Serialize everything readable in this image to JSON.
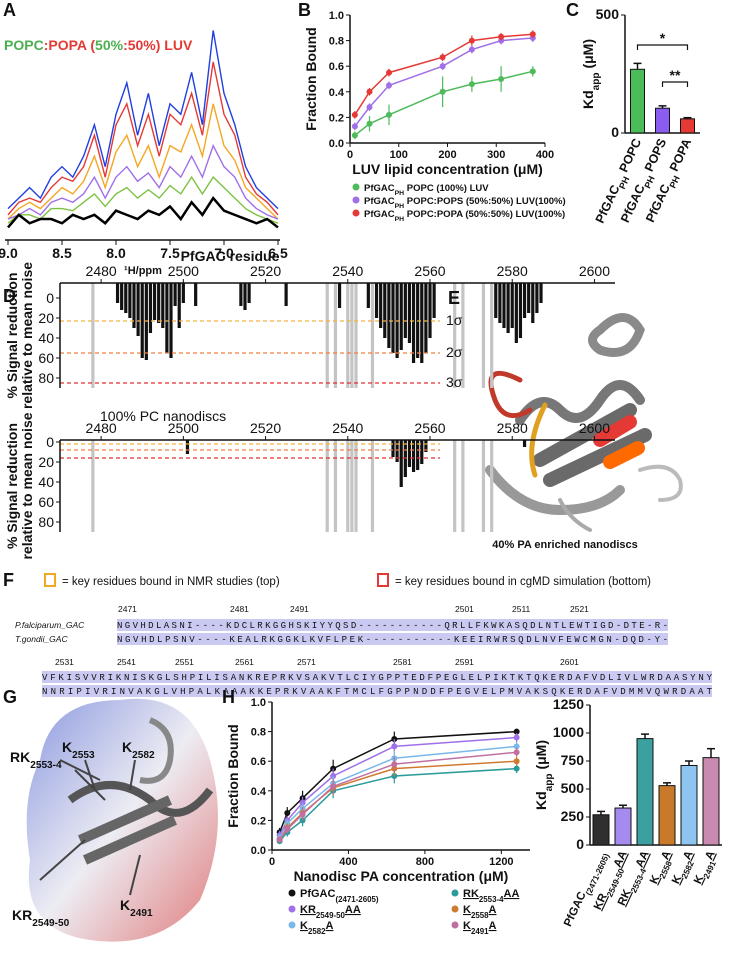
{
  "chart_data": [
    {
      "label": "A",
      "type": "line",
      "title_parts": [
        {
          "text": "POPC",
          "color": "#4caf50"
        },
        {
          "text": ":POPA (",
          "color": "#e53935"
        },
        {
          "text": "50%",
          "color": "#4caf50"
        },
        {
          "text": ":50%) LUV",
          "color": "#e53935"
        }
      ],
      "x": [
        9.0,
        8.9,
        8.8,
        8.7,
        8.6,
        8.5,
        8.4,
        8.3,
        8.2,
        8.1,
        8.0,
        7.9,
        7.8,
        7.7,
        7.6,
        7.5,
        7.4,
        7.3,
        7.2,
        7.1,
        7.0,
        6.9,
        6.8,
        6.7,
        6.6,
        6.5
      ],
      "xlim": [
        9.0,
        6.5
      ],
      "ylim": [
        0,
        1.05
      ],
      "xticks": [
        {
          "value": 9.0,
          "label": "9.0"
        },
        8.5,
        {
          "value": 8.0,
          "label": "8.0"
        },
        7.5,
        {
          "value": 7.0,
          "label": "7.0"
        },
        6.5
      ],
      "xlabel": "¹H/ppm",
      "series": [
        {
          "color": "#1f3fe0",
          "values": [
            0.15,
            0.2,
            0.25,
            0.2,
            0.3,
            0.35,
            0.3,
            0.4,
            0.55,
            0.35,
            0.6,
            0.75,
            0.5,
            0.7,
            0.45,
            0.65,
            0.6,
            0.8,
            0.55,
            1.0,
            0.7,
            0.55,
            0.35,
            0.25,
            0.2,
            0.15
          ]
        },
        {
          "color": "#e53935",
          "values": [
            0.12,
            0.18,
            0.2,
            0.18,
            0.25,
            0.3,
            0.28,
            0.35,
            0.5,
            0.3,
            0.55,
            0.65,
            0.45,
            0.6,
            0.4,
            0.6,
            0.55,
            0.7,
            0.5,
            0.85,
            0.6,
            0.5,
            0.3,
            0.22,
            0.18,
            0.12
          ]
        },
        {
          "color": "#f5a623",
          "values": [
            0.1,
            0.15,
            0.18,
            0.15,
            0.2,
            0.25,
            0.22,
            0.28,
            0.4,
            0.25,
            0.42,
            0.5,
            0.35,
            0.45,
            0.3,
            0.45,
            0.42,
            0.55,
            0.4,
            0.65,
            0.45,
            0.38,
            0.25,
            0.2,
            0.15,
            0.1
          ]
        },
        {
          "color": "#a070e8",
          "values": [
            0.1,
            0.12,
            0.15,
            0.12,
            0.18,
            0.2,
            0.18,
            0.22,
            0.3,
            0.2,
            0.3,
            0.35,
            0.28,
            0.32,
            0.25,
            0.35,
            0.3,
            0.4,
            0.3,
            0.45,
            0.35,
            0.3,
            0.2,
            0.15,
            0.12,
            0.1
          ]
        },
        {
          "color": "#7cc242",
          "values": [
            0.08,
            0.12,
            0.12,
            0.1,
            0.15,
            0.15,
            0.14,
            0.18,
            0.22,
            0.16,
            0.22,
            0.25,
            0.2,
            0.24,
            0.2,
            0.26,
            0.22,
            0.3,
            0.22,
            0.3,
            0.25,
            0.2,
            0.15,
            0.12,
            0.1,
            0.08
          ]
        },
        {
          "color": "#000000",
          "values": [
            0.06,
            0.12,
            0.08,
            0.1,
            0.1,
            0.08,
            0.12,
            0.1,
            0.12,
            0.08,
            0.14,
            0.12,
            0.1,
            0.14,
            0.12,
            0.16,
            0.1,
            0.18,
            0.12,
            0.2,
            0.14,
            0.12,
            0.1,
            0.08,
            0.1,
            0.06
          ]
        }
      ]
    },
    {
      "label": "B",
      "type": "scatter",
      "x": [
        10,
        40,
        80,
        190,
        250,
        310,
        375
      ],
      "xlim": [
        0,
        400
      ],
      "xticks": [
        0,
        100,
        200,
        300,
        400
      ],
      "ylim": [
        0,
        1
      ],
      "yticks": [
        {
          "value": 0,
          "label": "0.0"
        },
        0.2,
        0.4,
        0.6,
        0.8,
        {
          "value": 1,
          "label": "1.0"
        }
      ],
      "xlabel": "LUV lipid concentration (μM)",
      "ylabel": "Fraction Bound",
      "series": [
        {
          "name": [
            "PfGAC",
            "PH",
            " POPC (100%) LUV"
          ],
          "color": "#4cbb5a",
          "values": [
            0.06,
            0.15,
            0.22,
            0.4,
            0.46,
            0.5,
            0.56
          ],
          "errors": [
            0.03,
            0.06,
            0.08,
            0.12,
            0.06,
            0.1,
            0.04
          ]
        },
        {
          "name": [
            "PfGAC",
            "PH",
            " POPC:POPS (50%:50%) LUV(100%)"
          ],
          "color": "#a070e8",
          "values": [
            0.13,
            0.28,
            0.45,
            0.6,
            0.73,
            0.8,
            0.82
          ],
          "errors": [
            0.03,
            0.03,
            0.03,
            0.03,
            0.03,
            0.03,
            0.03
          ]
        },
        {
          "name": [
            "PfGAC",
            "PH",
            " POPC:POPA (50%:50%) LUV(100%)"
          ],
          "color": "#e53935",
          "values": [
            0.22,
            0.4,
            0.55,
            0.67,
            0.8,
            0.83,
            0.85
          ],
          "errors": [
            0.03,
            0.03,
            0.03,
            0.03,
            0.04,
            0.03,
            0.03
          ]
        }
      ]
    },
    {
      "label": "C",
      "type": "bar",
      "categories": [
        [
          "PfGAC",
          "PH",
          " POPC"
        ],
        [
          "PfGAC",
          "PH",
          " POPS"
        ],
        [
          "PfGAC",
          "PH",
          " POPA"
        ]
      ],
      "values": [
        270,
        105,
        60
      ],
      "errors": [
        25,
        10,
        5
      ],
      "colors": [
        "#4cbb5a",
        "#8a5cf0",
        "#e53935"
      ],
      "ylim": [
        0,
        500
      ],
      "yticks": [
        0,
        500
      ],
      "ylabel": [
        "Kd",
        "app",
        " (μM)"
      ],
      "annotations": [
        "*",
        "**"
      ]
    },
    {
      "label": "D",
      "type": "bar",
      "xlabel": "PfGAC residue",
      "xlim": [
        2470,
        2605
      ],
      "xticks": [
        2480,
        2500,
        2520,
        2540,
        2560,
        2580,
        2600
      ],
      "ylim": [
        -15,
        90
      ],
      "yticks": [
        0,
        20,
        40,
        60,
        80
      ],
      "ylabel": [
        "% Signal reduction",
        "relative to mean noise"
      ],
      "residues": [
        2484,
        2485,
        2486,
        2487,
        2488,
        2489,
        2490,
        2491,
        2492,
        2493,
        2494,
        2495,
        2496,
        2497,
        2498,
        2499,
        2500,
        2503,
        2514,
        2515,
        2516,
        2525,
        2538,
        2545,
        2547,
        2548,
        2549,
        2550,
        2551,
        2552,
        2553,
        2554,
        2555,
        2556,
        2557,
        2558,
        2559,
        2560,
        2561,
        2576,
        2577,
        2578,
        2579,
        2580,
        2581,
        2582,
        2583,
        2584,
        2585,
        2586,
        2587
      ],
      "values": [
        5,
        12,
        15,
        20,
        30,
        38,
        60,
        62,
        35,
        22,
        25,
        30,
        55,
        60,
        8,
        30,
        5,
        8,
        8,
        12,
        5,
        8,
        10,
        10,
        20,
        30,
        40,
        50,
        55,
        60,
        52,
        40,
        45,
        65,
        60,
        65,
        55,
        40,
        20,
        20,
        25,
        30,
        35,
        30,
        45,
        40,
        20,
        15,
        25,
        15,
        5
      ],
      "missing_residues": [
        2478,
        2535,
        2537,
        2540,
        2541,
        2542,
        2546,
        2566,
        2568,
        2573,
        2575
      ],
      "reference_lines": [
        {
          "value": 23,
          "label": "1σ",
          "color": "#f5b041"
        },
        {
          "value": 55,
          "label": "2σ",
          "color": "#f08040"
        },
        {
          "value": 85,
          "label": "3σ",
          "color": "#e03030"
        }
      ]
    },
    {
      "type": "bar",
      "subtitle": "100% PC nanodiscs",
      "subtitle_color": "#5cc15c",
      "xlim": [
        2470,
        2605
      ],
      "xticks": [
        2480,
        2500,
        2520,
        2540,
        2560,
        2580,
        2600
      ],
      "ylim": [
        -2,
        90
      ],
      "yticks": [
        0,
        20,
        40,
        60,
        80
      ],
      "ylabel": [
        "% Signal reduction",
        "relative to mean noise"
      ],
      "residues": [
        2501,
        2551,
        2552,
        2553,
        2554,
        2555,
        2556,
        2557,
        2558,
        2559,
        2583
      ],
      "values": [
        12,
        15,
        20,
        45,
        35,
        25,
        30,
        28,
        22,
        10,
        5
      ],
      "missing_residues": [
        2478,
        2535,
        2537,
        2540,
        2541,
        2542,
        2546,
        2566,
        2568,
        2573,
        2575
      ],
      "reference_lines": [
        {
          "value": 2,
          "color": "#f5b041"
        },
        {
          "value": 8,
          "color": "#f08040"
        },
        {
          "value": 16,
          "color": "#e03030"
        }
      ]
    },
    {
      "label": "H",
      "type": "scatter",
      "x": [
        40,
        80,
        160,
        320,
        640,
        1280
      ],
      "xlim": [
        0,
        1350
      ],
      "xticks": [
        0,
        400,
        800,
        1200
      ],
      "ylim": [
        0,
        1
      ],
      "yticks": [
        {
          "value": 0,
          "label": "0.0"
        },
        0.2,
        0.4,
        0.6,
        0.8,
        {
          "value": 1,
          "label": "1.0"
        }
      ],
      "xlabel": "Nanodisc PA concentration (μM)",
      "ylabel": "Fraction Bound",
      "series": [
        {
          "name": [
            "PfGAC",
            "(2471-2605)"
          ],
          "underline": false,
          "color": "#111111",
          "values": [
            0.12,
            0.25,
            0.35,
            0.55,
            0.75,
            0.8
          ],
          "errors": [
            0.03,
            0.04,
            0.05,
            0.06,
            0.05,
            0.02
          ]
        },
        {
          "name": [
            "KR",
            "2549-50",
            "AA"
          ],
          "underline": true,
          "color": "#a070e8",
          "values": [
            0.1,
            0.2,
            0.32,
            0.5,
            0.7,
            0.76
          ],
          "errors": [
            0.03,
            0.03,
            0.04,
            0.05,
            0.05,
            0.03
          ]
        },
        {
          "name": [
            "K",
            "2582",
            "A"
          ],
          "underline": true,
          "color": "#7ab8e8",
          "values": [
            0.08,
            0.18,
            0.28,
            0.45,
            0.62,
            0.7
          ],
          "errors": [
            0.03,
            0.03,
            0.04,
            0.05,
            0.05,
            0.03
          ]
        },
        {
          "name": [
            "RK",
            "2553-4",
            "AA"
          ],
          "underline": true,
          "color": "#2a9a9a",
          "values": [
            0.06,
            0.12,
            0.2,
            0.4,
            0.5,
            0.55
          ],
          "errors": [
            0.02,
            0.03,
            0.04,
            0.05,
            0.05,
            0.03
          ]
        },
        {
          "name": [
            "K",
            "2558",
            "A"
          ],
          "underline": true,
          "color": "#d07a30",
          "values": [
            0.07,
            0.15,
            0.25,
            0.42,
            0.55,
            0.6
          ],
          "errors": [
            0.02,
            0.03,
            0.04,
            0.05,
            0.05,
            0.03
          ]
        },
        {
          "name": [
            "K",
            "2491",
            "A"
          ],
          "underline": true,
          "color": "#c070a0",
          "values": [
            0.07,
            0.14,
            0.24,
            0.43,
            0.58,
            0.66
          ],
          "errors": [
            0.02,
            0.03,
            0.04,
            0.05,
            0.05,
            0.03
          ]
        }
      ]
    },
    {
      "type": "bar",
      "categories": [
        [
          "PfGAC",
          "(2471-2605)"
        ],
        [
          "KR",
          "2549-50",
          "AA"
        ],
        [
          "RK",
          "2553-4",
          "AA"
        ],
        [
          "K",
          "2558",
          "A"
        ],
        [
          "K",
          "2582",
          "A"
        ],
        [
          "K",
          "2491",
          "A"
        ]
      ],
      "underline": [
        false,
        true,
        true,
        true,
        true,
        true
      ],
      "values": [
        270,
        330,
        950,
        530,
        710,
        780
      ],
      "errors": [
        30,
        25,
        40,
        25,
        40,
        80
      ],
      "colors": [
        "#2f2f2f",
        "#a58bf0",
        "#3aa0a0",
        "#c87a2a",
        "#8ec4f0",
        "#c88ab0"
      ],
      "ylim": [
        0,
        1250
      ],
      "yticks": [
        0,
        250,
        500,
        750,
        1000,
        1250
      ],
      "ylabel": [
        "Kd",
        "app",
        " (μM)"
      ]
    }
  ],
  "structure_e": {
    "label": "E",
    "caption": "40% PA enriched nanodiscs"
  },
  "alignment": {
    "label": "F",
    "legend": [
      "= key residues bound in NMR studies (top)",
      "= key residues bound in cgMD simulation (bottom)"
    ],
    "blocks": [
      {
        "numbers": [
          2471,
          2481,
          2491,
          2501,
          2511,
          2521
        ],
        "rows": [
          {
            "species": "P.falciparum_GAC",
            "sequence": "NGVHDLASNI----KDCLRKGGHSKIYYQSD-----------QRLLFKWKASQDLNTLEWTIGD-DTE-R-"
          },
          {
            "species": "T.gondii_GAC",
            "sequence": "NGVHDLPSNV----KEALRKGGKLKVFLPEK-----------KEEIRWRSQDLNVFEWCMGN-DQD-Y-"
          }
        ]
      },
      {
        "numbers": [
          2531,
          2541,
          2551,
          2561,
          2571,
          2581,
          2591,
          2601
        ],
        "rows": [
          {
            "sequence": "VFKISVVRIKNISKGLSHPILISANKREPRKVSAKVTLCIYGPPTEDFPEGLELPIKTKTQKERDAFVDLIVLWRDAASYNY"
          },
          {
            "sequence": "NNRIPIVRINVAKGLVHPALKAAAKKEPRKVAAKFTMCLFGPPNDDFPEGVELPMVAKSQKERDAFVDMMVQWRDAAT"
          }
        ]
      }
    ]
  },
  "structure_g": {
    "label": "G",
    "labels": [
      [
        "RK",
        "2553-4"
      ],
      [
        "K",
        "2553"
      ],
      [
        "K",
        "2582"
      ],
      [
        "K",
        "2491"
      ],
      [
        "KR",
        "2549-50"
      ]
    ]
  }
}
